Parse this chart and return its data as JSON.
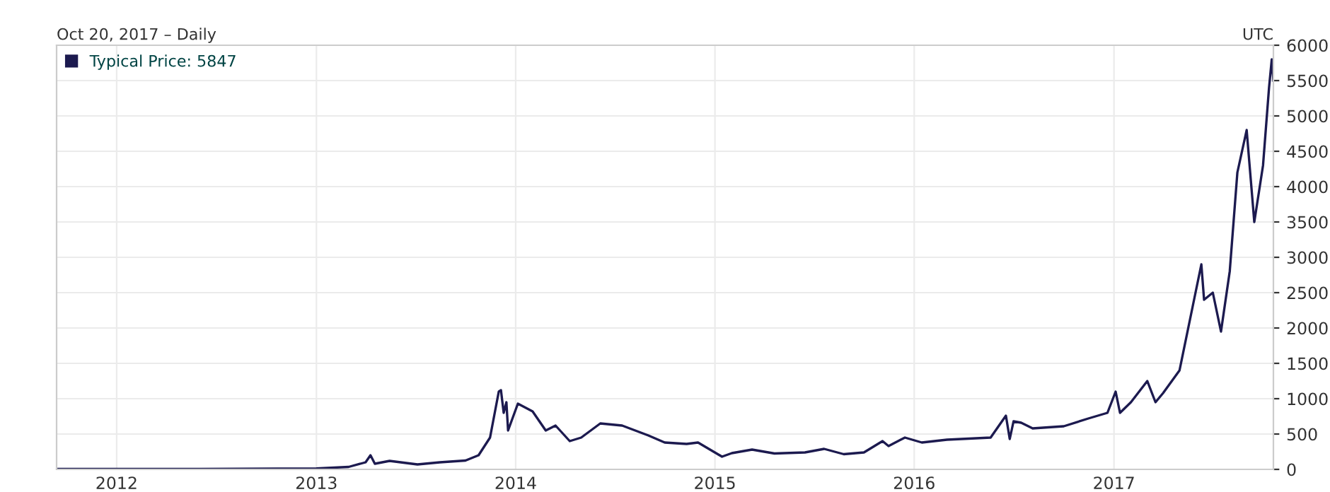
{
  "chart_data": {
    "type": "line",
    "subtitle": "Oct 20, 2017 – Daily",
    "annotations": [
      "UTC"
    ],
    "xlim": [
      "2011-09-13",
      "2017-10-20"
    ],
    "xticks": [
      {
        "value": "2012-01-01",
        "label": "2012"
      },
      {
        "value": "2013-01-01",
        "label": "2013"
      },
      {
        "value": "2014-01-01",
        "label": "2014"
      },
      {
        "value": "2015-01-01",
        "label": "2015"
      },
      {
        "value": "2016-01-01",
        "label": "2016"
      },
      {
        "value": "2017-01-01",
        "label": "2017"
      }
    ],
    "ylim": [
      0,
      6000
    ],
    "yticks": [
      0,
      500,
      1000,
      1500,
      2000,
      2500,
      3000,
      3500,
      4000,
      4500,
      5000,
      5500,
      6000
    ],
    "grid": true,
    "legend": "top left",
    "marker": "none",
    "line_style": "solid",
    "series": [
      {
        "name": "Typical Price: 5847",
        "color": "#1c1a4f",
        "x": [
          "2011-09-13",
          "2012-01-01",
          "2012-06-01",
          "2013-01-01",
          "2013-03-01",
          "2013-04-01",
          "2013-04-10",
          "2013-04-18",
          "2013-05-15",
          "2013-07-05",
          "2013-08-15",
          "2013-10-01",
          "2013-10-25",
          "2013-11-15",
          "2013-12-01",
          "2013-12-05",
          "2013-12-10",
          "2013-12-15",
          "2013-12-18",
          "2014-01-05",
          "2014-02-01",
          "2014-02-25",
          "2014-03-15",
          "2014-04-10",
          "2014-05-01",
          "2014-06-05",
          "2014-07-15",
          "2014-09-01",
          "2014-10-01",
          "2014-11-10",
          "2014-12-01",
          "2015-01-14",
          "2015-02-01",
          "2015-03-10",
          "2015-04-20",
          "2015-06-15",
          "2015-07-20",
          "2015-08-25",
          "2015-10-01",
          "2015-11-04",
          "2015-11-15",
          "2015-12-15",
          "2016-01-15",
          "2016-03-01",
          "2016-05-20",
          "2016-06-17",
          "2016-06-24",
          "2016-07-01",
          "2016-07-15",
          "2016-08-05",
          "2016-10-01",
          "2016-11-15",
          "2016-12-20",
          "2017-01-04",
          "2017-01-12",
          "2017-02-01",
          "2017-03-03",
          "2017-03-18",
          "2017-04-01",
          "2017-05-01",
          "2017-05-25",
          "2017-06-10",
          "2017-06-15",
          "2017-07-01",
          "2017-07-16",
          "2017-08-01",
          "2017-08-15",
          "2017-09-01",
          "2017-09-15",
          "2017-10-01",
          "2017-10-12",
          "2017-10-17",
          "2017-10-20"
        ],
        "values": [
          5,
          6,
          6,
          13,
          35,
          100,
          200,
          80,
          120,
          70,
          100,
          125,
          200,
          450,
          1100,
          1120,
          800,
          950,
          550,
          930,
          820,
          550,
          620,
          400,
          450,
          650,
          620,
          480,
          380,
          360,
          380,
          180,
          230,
          280,
          225,
          240,
          290,
          215,
          240,
          400,
          330,
          450,
          380,
          420,
          450,
          760,
          430,
          680,
          660,
          580,
          610,
          720,
          800,
          1100,
          800,
          950,
          1250,
          950,
          1080,
          1400,
          2300,
          2900,
          2400,
          2500,
          1950,
          2800,
          4200,
          4800,
          3500,
          4300,
          5400,
          5800,
          5500
        ]
      }
    ]
  }
}
